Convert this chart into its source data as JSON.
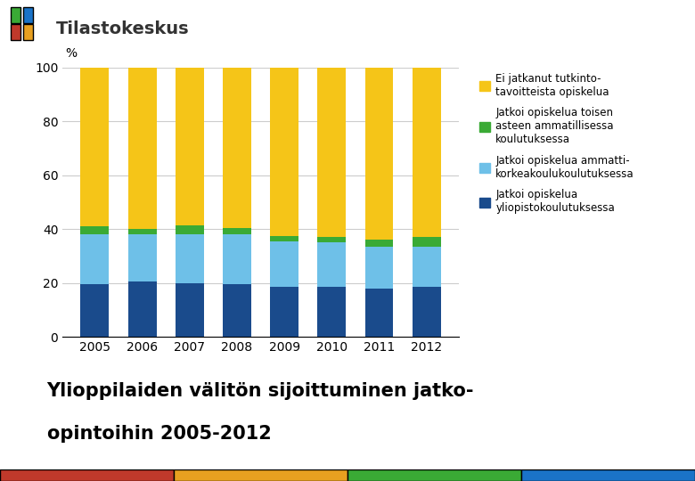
{
  "years": [
    2005,
    2006,
    2007,
    2008,
    2009,
    2010,
    2011,
    2012
  ],
  "yliopisto": [
    19.5,
    20.5,
    20.0,
    19.5,
    18.5,
    18.5,
    18.0,
    18.5
  ],
  "amk": [
    18.5,
    17.5,
    18.0,
    18.5,
    17.0,
    16.5,
    15.5,
    15.0
  ],
  "toinen_aste": [
    3.0,
    2.0,
    3.5,
    2.5,
    2.0,
    2.0,
    2.5,
    3.5
  ],
  "ei_jatkanut": [
    59.0,
    60.0,
    58.5,
    59.5,
    62.5,
    63.0,
    64.0,
    63.0
  ],
  "color_yliopisto": "#1a4b8c",
  "color_amk": "#6ec0e8",
  "color_toinen_aste": "#3aaa35",
  "color_ei_jatkanut": "#f5c518",
  "ylabel": "%",
  "ylim": [
    0,
    100
  ],
  "yticks": [
    0,
    20,
    40,
    60,
    80,
    100
  ],
  "legend_labels": [
    "Ei jatkanut tutkinto-\ntavoitteista opiskelua",
    "Jatkoi opiskelua toisen\nasteen ammatillisessa\nkoulutuksessa",
    "Jatkoi opiskelua ammatti-\nkorkeakoulukoulutuksessa",
    "Jatkoi opiskelua\nyliopistokoulutuksessa"
  ],
  "title_line1": "Ylioppilaiden välitön sijoittuminen jatko-",
  "title_line2": "opintoihin 2005-2012",
  "header_text": "Tilastokeskus",
  "axis_fontsize": 10,
  "legend_fontsize": 8.5,
  "title_fontsize": 15,
  "bar_width": 0.6,
  "grid_color": "#cccccc",
  "header_color": "#333333",
  "bottom_color_bar_colors": [
    "#c0392b",
    "#f39c12",
    "#27ae60",
    "#2980b9"
  ],
  "bottom_stripe_colors": [
    "#c0392b",
    "#e67e22",
    "#2ecc71",
    "#3498db"
  ],
  "footer_stripe_colors": [
    "#c0392b",
    "#e8a020",
    "#3aaa35",
    "#1a73c8"
  ]
}
